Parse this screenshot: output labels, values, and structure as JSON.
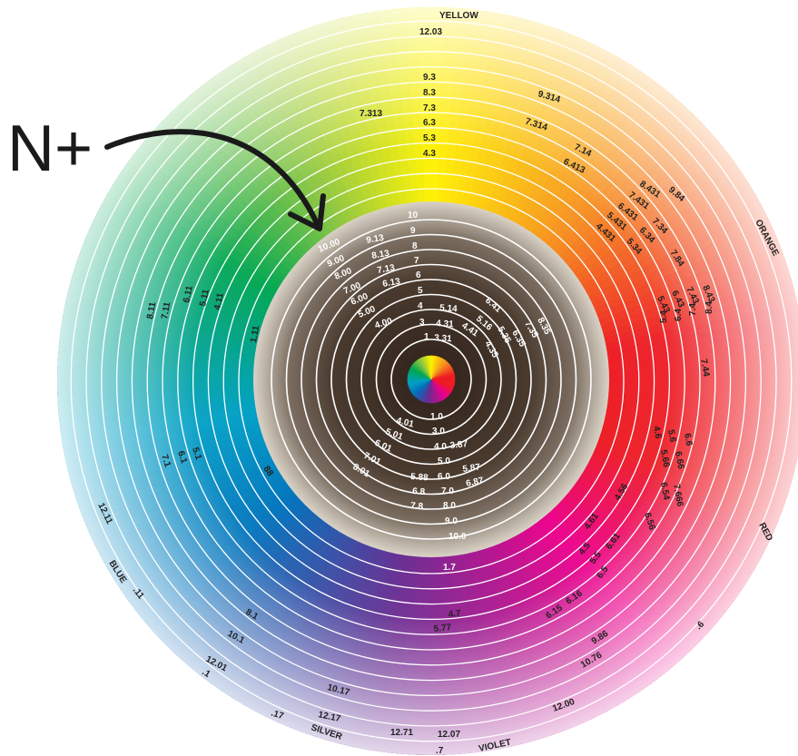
{
  "callout_text": "N+",
  "colors": {
    "yellow": "#fff200",
    "orange": "#f7931e",
    "red": "#ed1c24",
    "magenta": "#ec008c",
    "violet": "#662d91",
    "blue": "#0072bc",
    "cyan": "#00a0c6",
    "green": "#00a651",
    "lime": "#8dc63f",
    "dark_brown": "#3a2c22",
    "taupe": "#a39a8e"
  },
  "outer_names": {
    "yellow": "YELLOW",
    "orange": "ORANGE",
    "red": "RED",
    "violet": "VIOLET",
    "silver": "SILVER",
    "blue": "BLUE"
  },
  "outer_labels": [
    "12.03",
    "9.3",
    "8.3",
    "7.3",
    "6.3",
    "5.3",
    "4.3",
    "7.313",
    "9.314",
    "7.314",
    "7.14",
    "6.413",
    "8.431",
    "9.84",
    "7.431",
    "6.431",
    "6.34",
    "7.34",
    "5.431",
    "4.431",
    "5.34",
    "7.84",
    "8.43",
    "8.4",
    "7.43",
    "7.4",
    "6.43",
    "6.4",
    "5.43",
    "5.4",
    "7.44",
    "4.6",
    "5.6",
    "6.6",
    "5.66",
    "6.66",
    "6.54",
    "7.666",
    "6.56",
    "4.56",
    "4.61",
    "4.5",
    "5.5",
    "6.61",
    "6.5",
    "6.15",
    "6.16",
    ".6",
    "9.86",
    "10.76",
    "12.00",
    "12.07",
    ".7",
    "12.71",
    "12.17",
    ".17",
    "10.17",
    "12.01",
    ".1",
    "10.1",
    "8.1",
    "4.7",
    "5.77",
    "1.7",
    "12.11",
    ".11",
    "88",
    "5.1",
    "6.1",
    "7.1",
    "8.11",
    "7.11",
    "6.11",
    "5.11",
    "4.11",
    "1.11"
  ],
  "inner_labels": [
    "10",
    "9",
    "8",
    "7",
    "6",
    "5",
    "4",
    "3",
    "1",
    "10.00",
    "9.00",
    "8.00",
    "7.00",
    "6.00",
    "5.00",
    "4.00",
    "9.13",
    "8.13",
    "7.13",
    "6.13",
    "5.14",
    "4.31",
    "3.31",
    "4.41",
    "5.16",
    "6.41",
    "5.35",
    "4.35",
    "6.35",
    "7.35",
    "8.35",
    "1.0",
    "3.0",
    "3.87",
    "4.0",
    "5.0",
    "5.87",
    "6.0",
    "6.87",
    "7.0",
    "8.0",
    "9.0",
    "10.0",
    "5.88",
    "6.8",
    "7.8",
    "4.01",
    "5.01",
    "6.01",
    "7.01",
    "8.01"
  ]
}
